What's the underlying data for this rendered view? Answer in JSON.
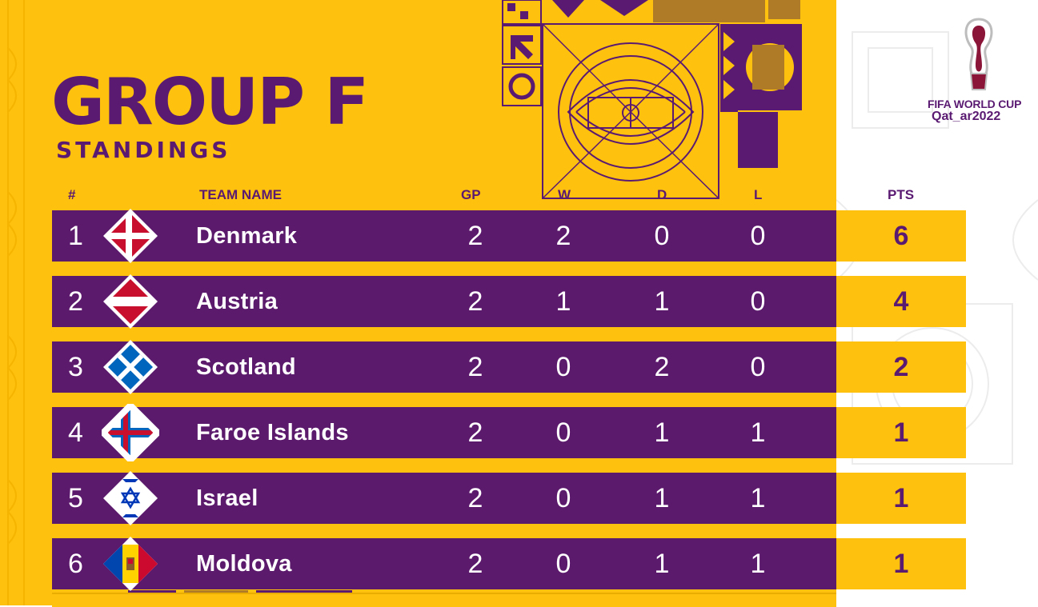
{
  "header": {
    "title": "GROUP F",
    "subtitle": "STANDINGS"
  },
  "logo": {
    "line1": "FIFA WORLD CUP",
    "line2": "Qat_ar2022"
  },
  "columns": {
    "rank": "#",
    "team": "TEAM NAME",
    "gp": "GP",
    "w": "W",
    "d": "D",
    "l": "L",
    "pts": "PTS"
  },
  "standings": [
    {
      "rank": "1",
      "team": "Denmark",
      "flag": "denmark-flag-icon",
      "gp": "2",
      "w": "2",
      "d": "0",
      "l": "0",
      "pts": "6"
    },
    {
      "rank": "2",
      "team": "Austria",
      "flag": "austria-flag-icon",
      "gp": "2",
      "w": "1",
      "d": "1",
      "l": "0",
      "pts": "4"
    },
    {
      "rank": "3",
      "team": "Scotland",
      "flag": "scotland-flag-icon",
      "gp": "2",
      "w": "0",
      "d": "2",
      "l": "0",
      "pts": "2"
    },
    {
      "rank": "4",
      "team": "Faroe Islands",
      "flag": "faroe-islands-flag-icon",
      "gp": "2",
      "w": "0",
      "d": "1",
      "l": "1",
      "pts": "1"
    },
    {
      "rank": "5",
      "team": "Israel",
      "flag": "israel-flag-icon",
      "gp": "2",
      "w": "0",
      "d": "1",
      "l": "1",
      "pts": "1"
    },
    {
      "rank": "6",
      "team": "Moldova",
      "flag": "moldova-flag-icon",
      "gp": "2",
      "w": "0",
      "d": "1",
      "l": "1",
      "pts": "1"
    }
  ],
  "colors": {
    "background": "#fec10e",
    "row": "#5c1a6d",
    "text_dark": "#5a1a72",
    "text_light": "#ffffff"
  }
}
